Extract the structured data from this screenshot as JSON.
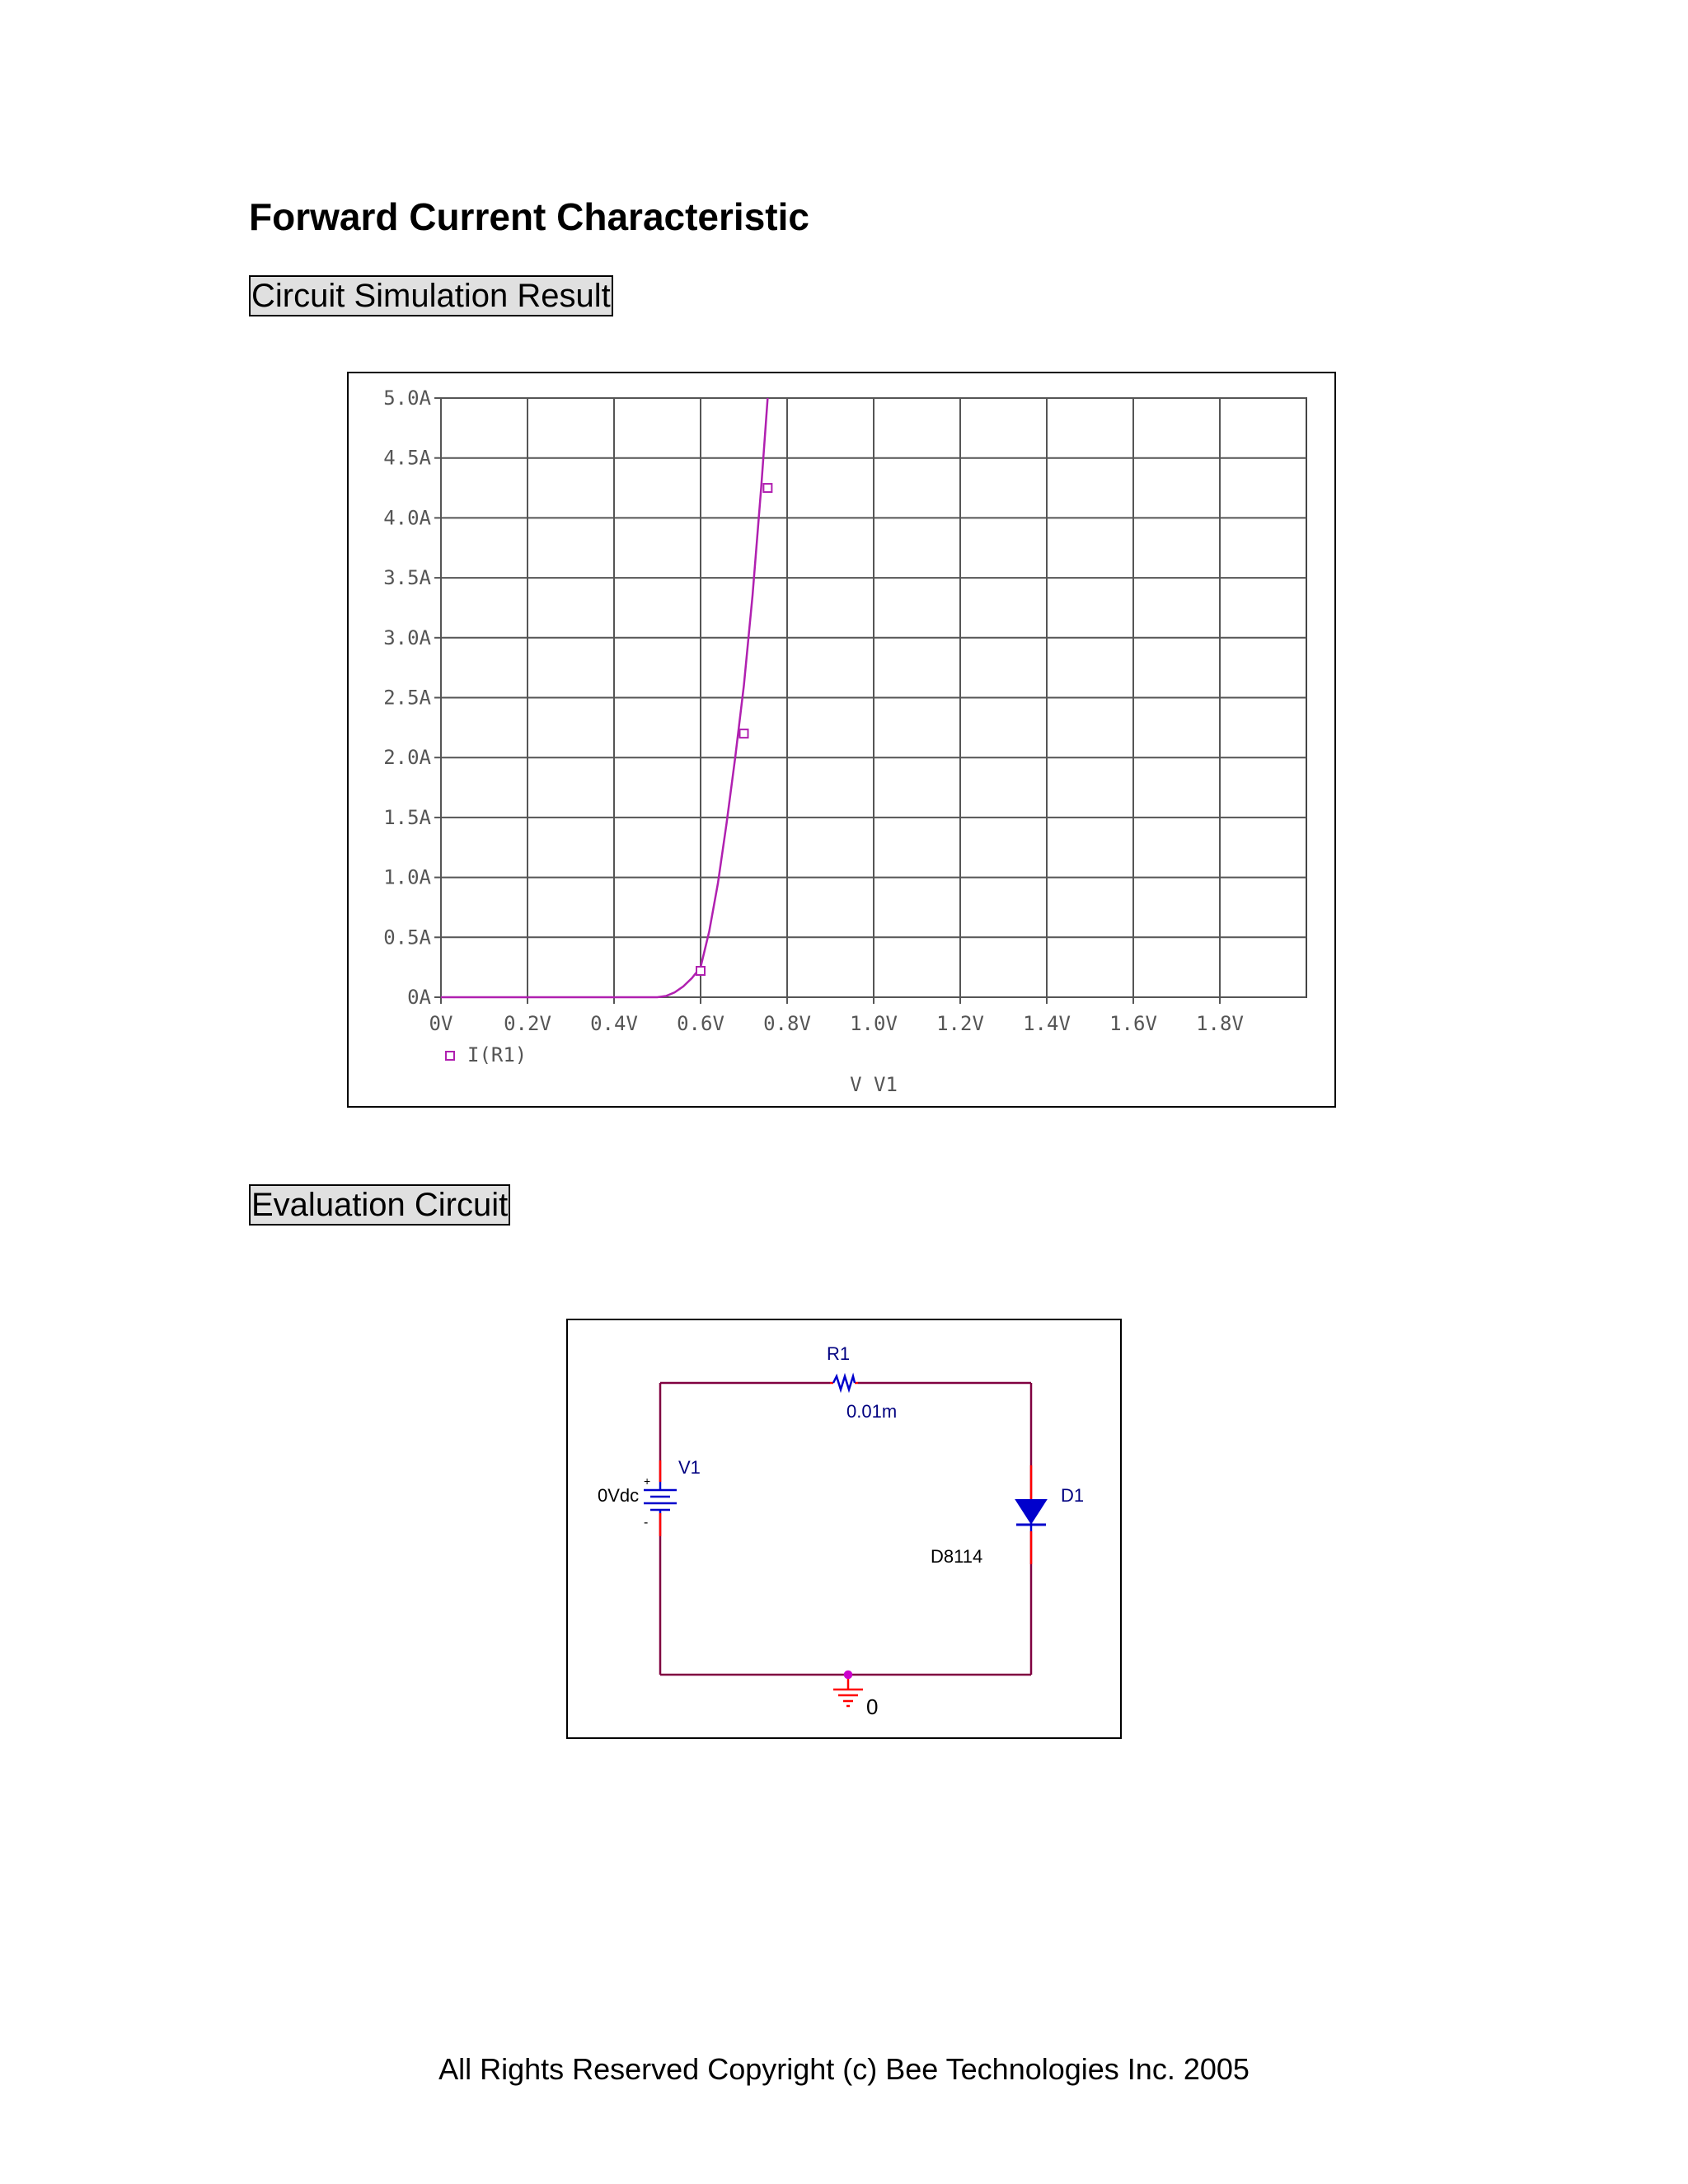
{
  "title": "Forward Current Characteristic",
  "sections": {
    "simulation": "Circuit Simulation Result",
    "circuit": "Evaluation Circuit"
  },
  "chart_data": {
    "type": "line",
    "xlabel": "V_V1",
    "ylabel": "",
    "xlim": [
      0,
      2.0
    ],
    "ylim": [
      0,
      5.0
    ],
    "x_ticks": [
      0,
      0.2,
      0.4,
      0.6,
      0.8,
      1.0,
      1.2,
      1.4,
      1.6,
      1.8
    ],
    "x_tick_labels": [
      "0V",
      "0.2V",
      "0.4V",
      "0.6V",
      "0.8V",
      "1.0V",
      "1.2V",
      "1.4V",
      "1.6V",
      "1.8V"
    ],
    "y_ticks": [
      0,
      0.5,
      1.0,
      1.5,
      2.0,
      2.5,
      3.0,
      3.5,
      4.0,
      4.5,
      5.0
    ],
    "y_tick_labels": [
      "0A",
      "0.5A",
      "1.0A",
      "1.5A",
      "2.0A",
      "2.5A",
      "3.0A",
      "3.5A",
      "4.0A",
      "4.5A",
      "5.0A"
    ],
    "grid": true,
    "legend_position": "bottom-left",
    "series": [
      {
        "name": "I(R1)",
        "color": "#b020b0",
        "x": [
          0,
          0.4,
          0.5,
          0.52,
          0.54,
          0.56,
          0.58,
          0.6,
          0.62,
          0.64,
          0.66,
          0.68,
          0.7,
          0.72,
          0.74,
          0.755
        ],
        "y": [
          0,
          0,
          0.0,
          0.01,
          0.04,
          0.09,
          0.16,
          0.25,
          0.55,
          0.95,
          1.45,
          2.0,
          2.6,
          3.35,
          4.25,
          5.0
        ],
        "markers_x": [
          0.6,
          0.7,
          0.755
        ],
        "markers_y": [
          0.22,
          2.2,
          4.25
        ]
      }
    ]
  },
  "circuit": {
    "r1_name": "R1",
    "r1_value": "0.01m",
    "v1_name": "V1",
    "v1_value": "0Vdc",
    "d1_name": "D1",
    "d1_part": "D8114",
    "ground_label": "0",
    "plus_sign": "+",
    "minus_sign": "-",
    "wire_color": "#800040",
    "component_color": "#0000cc",
    "pin_color": "#ff0000"
  },
  "footer": "All Rights Reserved Copyright (c) Bee Technologies Inc. 2005"
}
